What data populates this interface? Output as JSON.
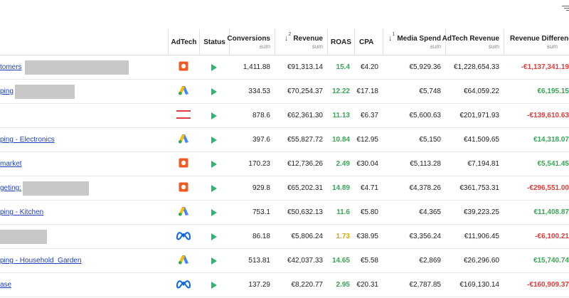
{
  "columns": {
    "adtech": "AdTech",
    "status": "Status",
    "conversions": "Conversions",
    "conversions_sub": "sum",
    "revenue": "Revenue",
    "revenue_sort": "2",
    "revenue_sub": "sum",
    "roas": "ROAS",
    "cpa": "CPA",
    "media_spend": "Media Spend",
    "media_spend_sort": "1",
    "media_spend_sub": "sum",
    "adtech_revenue": "AdTech Revenue",
    "adtech_revenue_sub": "sum",
    "revenue_difference": "Revenue Difference",
    "revenue_difference_sub": "sum"
  },
  "icons": {
    "menu": "filter-lines-icon",
    "status": "play-icon",
    "sort": "sort-arrow-down-icon"
  },
  "colors": {
    "green": "#3aa655",
    "red": "#e03c3c",
    "yellow": "#e0a400",
    "link": "#1a3fbf"
  },
  "rows": [
    {
      "name": "tomers",
      "adtech": "orange-square-icon",
      "conversions": "1,411.88",
      "revenue": "€91,313.14",
      "roas": "15.4",
      "roas_color": "green",
      "cpa": "€4.20",
      "media_spend": "€5,929.36",
      "adtech_revenue": "€1,228,654.33",
      "revenue_difference": "-€1,137,341.19",
      "diff_sign": "neg"
    },
    {
      "name": "ping",
      "adtech": "google-ads-icon",
      "conversions": "334.53",
      "revenue": "€70,254.37",
      "roas": "12.22",
      "roas_color": "green",
      "cpa": "€17.18",
      "media_spend": "€5,748",
      "adtech_revenue": "€64,059.22",
      "revenue_difference": "€6,195.15",
      "diff_sign": "pos"
    },
    {
      "name": "",
      "adtech": "red-lines-icon",
      "conversions": "878.6",
      "revenue": "€62,361.30",
      "roas": "11.13",
      "roas_color": "green",
      "cpa": "€6.37",
      "media_spend": "€5,600.63",
      "adtech_revenue": "€201,971.93",
      "revenue_difference": "-€139,610.63",
      "diff_sign": "neg"
    },
    {
      "name": "ping - Electronics",
      "adtech": "google-ads-icon",
      "conversions": "397.6",
      "revenue": "€55,827.72",
      "roas": "10.84",
      "roas_color": "green",
      "cpa": "€12.95",
      "media_spend": "€5,150",
      "adtech_revenue": "€41,509.65",
      "revenue_difference": "€14,318.07",
      "diff_sign": "pos"
    },
    {
      "name": "market",
      "adtech": "orange-square-icon",
      "conversions": "170.23",
      "revenue": "€12,736.26",
      "roas": "2.49",
      "roas_color": "green",
      "cpa": "€30.04",
      "media_spend": "€5,113.28",
      "adtech_revenue": "€7,194.81",
      "revenue_difference": "€5,541.45",
      "diff_sign": "pos"
    },
    {
      "name": "geting:",
      "adtech": "orange-square-icon",
      "conversions": "929.8",
      "revenue": "€65,202.31",
      "roas": "14.89",
      "roas_color": "green",
      "cpa": "€4.71",
      "media_spend": "€4,378.26",
      "adtech_revenue": "€361,753.31",
      "revenue_difference": "-€296,551.00",
      "diff_sign": "neg"
    },
    {
      "name": "ping - Kitchen",
      "adtech": "google-ads-icon",
      "conversions": "753.1",
      "revenue": "€50,632.13",
      "roas": "11.6",
      "roas_color": "green",
      "cpa": "€5.80",
      "media_spend": "€4,365",
      "adtech_revenue": "€39,223.25",
      "revenue_difference": "€11,408.87",
      "diff_sign": "pos"
    },
    {
      "name": "",
      "adtech": "meta-icon",
      "conversions": "86.18",
      "revenue": "€5,806.24",
      "roas": "1.73",
      "roas_color": "yellow",
      "cpa": "€38.95",
      "media_spend": "€3,356.24",
      "adtech_revenue": "€11,906.45",
      "revenue_difference": "-€6,100.21",
      "diff_sign": "neg"
    },
    {
      "name": "ping - Household_Garden",
      "adtech": "google-ads-icon",
      "conversions": "513.81",
      "revenue": "€42,037.33",
      "roas": "14.65",
      "roas_color": "green",
      "cpa": "€5.58",
      "media_spend": "€2,869",
      "adtech_revenue": "€26,296.60",
      "revenue_difference": "€15,740.74",
      "diff_sign": "pos"
    },
    {
      "name": "ase",
      "adtech": "meta-icon",
      "conversions": "137.29",
      "revenue": "€8,220.77",
      "roas": "2.95",
      "roas_color": "green",
      "cpa": "€20.31",
      "media_spend": "€2,787.85",
      "adtech_revenue": "€169,130.14",
      "revenue_difference": "-€160,909.37",
      "diff_sign": "neg"
    }
  ]
}
